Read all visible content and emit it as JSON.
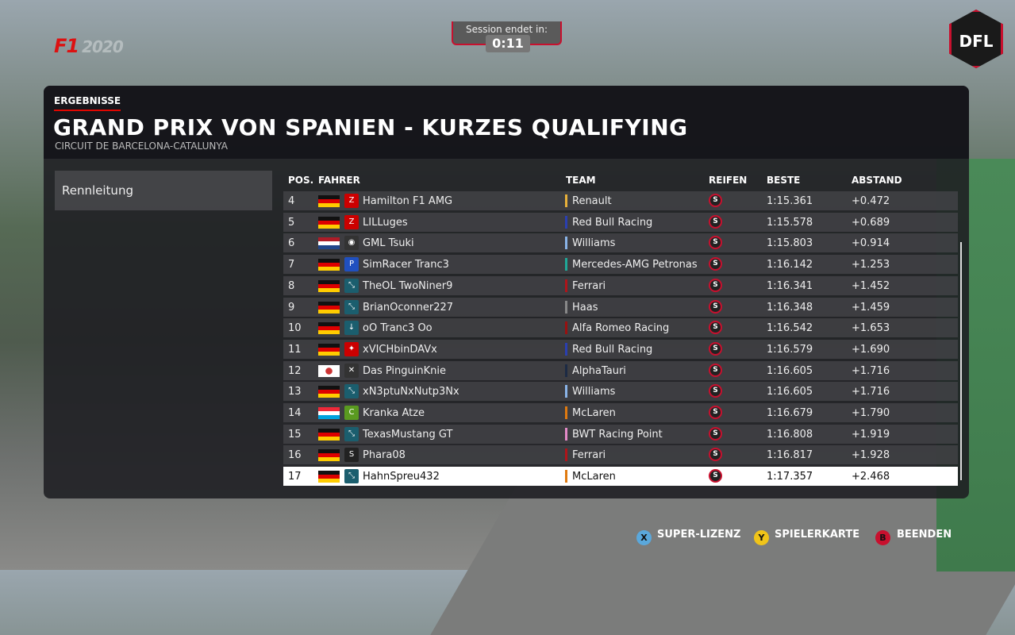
{
  "game": {
    "logo": "F1",
    "logo_year": "2020",
    "league_logo": "DFL"
  },
  "timer": {
    "label": "Session endet in:",
    "value": "0:11"
  },
  "header": {
    "section": "ERGEBNISSE",
    "title": "GRAND PRIX VON SPANIEN - KURZES QUALIFYING",
    "circuit": "CIRCUIT DE BARCELONA-CATALUNYA"
  },
  "sidebar": {
    "item": "Rennleitung"
  },
  "columns": {
    "pos": "POS.",
    "driver": "FAHRER",
    "team": "TEAM",
    "tyre": "REIFEN",
    "best": "BESTE",
    "gap": "ABSTAND"
  },
  "rows": [
    {
      "pos": "4",
      "flag": "DE",
      "avatar": "red-logo",
      "driver": "Hamilton F1 AMG",
      "team": "Renault",
      "color": "#e8b13a",
      "tyre": "S",
      "best": "1:15.361",
      "gap": "+0.472"
    },
    {
      "pos": "5",
      "flag": "DE",
      "avatar": "red-logo",
      "driver": "LILLuges",
      "team": "Red Bull Racing",
      "color": "#2a3fb0",
      "tyre": "S",
      "best": "1:15.578",
      "gap": "+0.689"
    },
    {
      "pos": "6",
      "flag": "NL",
      "avatar": "red-circle",
      "driver": "GML Tsuki",
      "team": "Williams",
      "color": "#8ab4e8",
      "tyre": "S",
      "best": "1:15.803",
      "gap": "+0.914"
    },
    {
      "pos": "7",
      "flag": "DE",
      "avatar": "blue-red-logo",
      "driver": "SimRacer Tranc3",
      "team": "Mercedes-AMG Petronas",
      "color": "#1fa898",
      "tyre": "S",
      "best": "1:16.142",
      "gap": "+1.253"
    },
    {
      "pos": "8",
      "flag": "DE",
      "avatar": "arrows",
      "driver": "TheOL TwoNiner9",
      "team": "Ferrari",
      "color": "#b0141a",
      "tyre": "S",
      "best": "1:16.341",
      "gap": "+1.452"
    },
    {
      "pos": "9",
      "flag": "DE",
      "avatar": "arrows",
      "driver": "BrianOconner227",
      "team": "Haas",
      "color": "#888888",
      "tyre": "S",
      "best": "1:16.348",
      "gap": "+1.459"
    },
    {
      "pos": "10",
      "flag": "DE",
      "avatar": "arrow-down",
      "driver": "oO Tranc3 Oo",
      "team": "Alfa Romeo Racing",
      "color": "#9a1010",
      "tyre": "S",
      "best": "1:16.542",
      "gap": "+1.653"
    },
    {
      "pos": "11",
      "flag": "DE",
      "avatar": "red-badge",
      "driver": "xVICHbinDAVx",
      "team": "Red Bull Racing",
      "color": "#2a3fb0",
      "tyre": "S",
      "best": "1:16.579",
      "gap": "+1.690"
    },
    {
      "pos": "12",
      "flag": "OTHER",
      "avatar": "cross",
      "driver": "Das PinguinKnie",
      "team": "AlphaTauri",
      "color": "#1c2a44",
      "tyre": "S",
      "best": "1:16.605",
      "gap": "+1.716"
    },
    {
      "pos": "13",
      "flag": "DE",
      "avatar": "arrows",
      "driver": "xN3ptuNxNutp3Nx",
      "team": "Williams",
      "color": "#8ab4e8",
      "tyre": "S",
      "best": "1:16.605",
      "gap": "+1.716"
    },
    {
      "pos": "14",
      "flag": "LU",
      "avatar": "green-logo",
      "driver": "Kranka Atze",
      "team": "McLaren",
      "color": "#e07a10",
      "tyre": "S",
      "best": "1:16.679",
      "gap": "+1.790"
    },
    {
      "pos": "15",
      "flag": "DE",
      "avatar": "arrows",
      "driver": "TexasMustang GT",
      "team": "BWT Racing Point",
      "color": "#e48ac8",
      "tyre": "S",
      "best": "1:16.808",
      "gap": "+1.919"
    },
    {
      "pos": "16",
      "flag": "DE",
      "avatar": "black-logo",
      "driver": "Phara08",
      "team": "Ferrari",
      "color": "#b0141a",
      "tyre": "S",
      "best": "1:16.817",
      "gap": "+1.928"
    },
    {
      "pos": "17",
      "flag": "DE",
      "avatar": "arrows",
      "driver": "HahnSpreu432",
      "team": "McLaren",
      "color": "#e07a10",
      "tyre": "S",
      "best": "1:17.357",
      "gap": "+2.468",
      "selected": true
    }
  ],
  "footer": [
    {
      "key": "X",
      "label": "SUPER-LIZENZ",
      "color": "#5aa8dc"
    },
    {
      "key": "Y",
      "label": "SPIELERKARTE",
      "color": "#f0c419"
    },
    {
      "key": "B",
      "label": "BEENDEN",
      "color": "#c8102e"
    }
  ]
}
